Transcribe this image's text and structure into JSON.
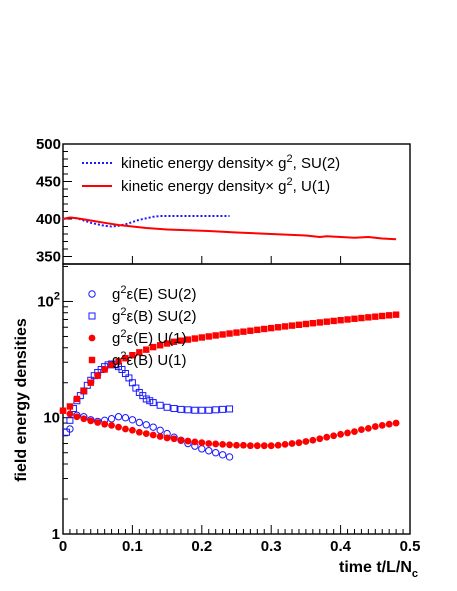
{
  "chart_data": [
    {
      "type": "line",
      "panel": "top",
      "xlim": [
        0,
        0.5
      ],
      "ylim": [
        340,
        500
      ],
      "y_ticks": [
        350,
        400,
        450,
        500
      ],
      "legend_position": "top",
      "legend": [
        {
          "prefix": "kinetic energy density",
          "times": "×",
          "factor": "g",
          "exp": "2",
          "suffix": ", SU(2)",
          "style": "dotted",
          "color": "#1a1aff"
        },
        {
          "prefix": "kinetic energy density",
          "times": "×",
          "factor": "g",
          "exp": "2",
          "suffix": ", U(1)",
          "style": "solid",
          "color": "#ff0000"
        }
      ],
      "series": [
        {
          "color": "#1a1aff",
          "style": "dotted",
          "x": [
            0,
            0.01,
            0.02,
            0.03,
            0.04,
            0.05,
            0.06,
            0.07,
            0.08,
            0.09,
            0.1,
            0.11,
            0.12,
            0.13,
            0.14,
            0.15,
            0.16,
            0.18,
            0.2,
            0.22,
            0.24
          ],
          "y": [
            400,
            402,
            401,
            398,
            395,
            393,
            391,
            390,
            391,
            393,
            396,
            399,
            401,
            403,
            404,
            404,
            404,
            404,
            404,
            404,
            404
          ]
        },
        {
          "color": "#ff0000",
          "style": "solid",
          "x": [
            0,
            0.01,
            0.02,
            0.04,
            0.06,
            0.08,
            0.1,
            0.12,
            0.15,
            0.18,
            0.21,
            0.25,
            0.3,
            0.35,
            0.37,
            0.38,
            0.4,
            0.42,
            0.44,
            0.45,
            0.46,
            0.48
          ],
          "y": [
            400,
            402,
            401,
            398,
            395,
            392,
            390,
            388,
            386,
            385,
            384,
            382,
            380,
            378,
            376,
            377,
            376,
            375,
            376,
            375,
            374,
            373
          ]
        }
      ]
    },
    {
      "type": "scatter",
      "panel": "bottom",
      "log_y": true,
      "xlim": [
        0,
        0.5
      ],
      "ylim": [
        1,
        210
      ],
      "x_ticks": [
        0,
        0.1,
        0.2,
        0.3,
        0.4,
        0.5
      ],
      "x_tick_labels": [
        "0",
        "0.1",
        "0.2",
        "0.3",
        "0.4",
        "0.5"
      ],
      "y_ticks": [
        1,
        10,
        100
      ],
      "y_tick_labels": [
        {
          "base": "1",
          "exp": ""
        },
        {
          "base": "10",
          "exp": ""
        },
        {
          "base": "10",
          "exp": "2"
        }
      ],
      "xlabel": {
        "main": "time t/L/N",
        "sub": "c"
      },
      "ylabel": "field energy densities",
      "legend_position": "top-left",
      "legend": [
        {
          "pre": "g",
          "exp": "2",
          "mid": "ε(E) SU(2)",
          "marker": "open-circle",
          "color": "#1a1aff"
        },
        {
          "pre": "g",
          "exp": "2",
          "mid": "ε(B) SU(2)",
          "marker": "open-square",
          "color": "#1a1aff"
        },
        {
          "pre": "g",
          "exp": "2",
          "mid": "ε(E) U(1)",
          "marker": "filled-circle",
          "color": "#ff0000"
        },
        {
          "pre": "g",
          "exp": "2",
          "mid": "ε(B) U(1)",
          "marker": "filled-square",
          "color": "#ff0000"
        }
      ],
      "series": [
        {
          "marker": "open-circle",
          "color": "#1a1aff",
          "x": [
            0.01,
            0.02,
            0.03,
            0.04,
            0.05,
            0.06,
            0.07,
            0.08,
            0.09,
            0.1,
            0.11,
            0.12,
            0.13,
            0.14,
            0.15,
            0.16,
            0.17,
            0.18,
            0.19,
            0.2,
            0.21,
            0.22,
            0.23,
            0.24
          ],
          "y": [
            8.0,
            10.5,
            10.2,
            9.6,
            9.3,
            9.5,
            9.8,
            10.2,
            10.0,
            9.6,
            9.1,
            8.7,
            8.3,
            7.8,
            7.3,
            6.8,
            6.4,
            6.0,
            5.7,
            5.4,
            5.2,
            5.0,
            4.8,
            4.6
          ]
        },
        {
          "marker": "open-square",
          "color": "#1a1aff",
          "x": [
            0.005,
            0.01,
            0.015,
            0.02,
            0.025,
            0.03,
            0.035,
            0.04,
            0.045,
            0.05,
            0.055,
            0.06,
            0.065,
            0.07,
            0.075,
            0.08,
            0.085,
            0.09,
            0.095,
            0.1,
            0.105,
            0.11,
            0.115,
            0.12,
            0.125,
            0.13,
            0.14,
            0.15,
            0.16,
            0.17,
            0.18,
            0.19,
            0.2,
            0.21,
            0.22,
            0.23,
            0.24
          ],
          "y": [
            7.5,
            9.5,
            12.0,
            14.0,
            15.5,
            17.0,
            19.0,
            21.0,
            23.0,
            24.5,
            26.0,
            27.5,
            28.5,
            29.0,
            28.5,
            27.5,
            26.0,
            24.0,
            22.0,
            20.0,
            18.0,
            16.5,
            15.5,
            14.5,
            14.0,
            13.5,
            12.8,
            12.3,
            12.0,
            11.8,
            11.7,
            11.6,
            11.6,
            11.6,
            11.7,
            11.8,
            11.9
          ]
        },
        {
          "marker": "filled-circle",
          "color": "#ff0000",
          "x": [
            0.0,
            0.01,
            0.02,
            0.03,
            0.04,
            0.05,
            0.06,
            0.07,
            0.08,
            0.09,
            0.1,
            0.11,
            0.12,
            0.13,
            0.14,
            0.15,
            0.16,
            0.17,
            0.18,
            0.19,
            0.2,
            0.21,
            0.22,
            0.23,
            0.24,
            0.25,
            0.26,
            0.27,
            0.28,
            0.29,
            0.3,
            0.31,
            0.32,
            0.33,
            0.34,
            0.35,
            0.36,
            0.37,
            0.38,
            0.39,
            0.4,
            0.41,
            0.42,
            0.43,
            0.44,
            0.45,
            0.46,
            0.47,
            0.48
          ],
          "y": [
            11.5,
            10.8,
            10.2,
            9.8,
            9.4,
            9.1,
            8.8,
            8.6,
            8.3,
            8.0,
            7.8,
            7.5,
            7.3,
            7.1,
            6.9,
            6.7,
            6.6,
            6.4,
            6.3,
            6.2,
            6.1,
            6.0,
            5.95,
            5.9,
            5.85,
            5.8,
            5.8,
            5.75,
            5.75,
            5.75,
            5.75,
            5.8,
            5.9,
            6.0,
            6.1,
            6.25,
            6.4,
            6.6,
            6.8,
            7.0,
            7.2,
            7.4,
            7.6,
            7.9,
            8.1,
            8.4,
            8.6,
            8.8,
            9.0
          ]
        },
        {
          "marker": "filled-square",
          "color": "#ff0000",
          "x": [
            0.0,
            0.01,
            0.02,
            0.03,
            0.04,
            0.05,
            0.06,
            0.07,
            0.08,
            0.09,
            0.1,
            0.11,
            0.12,
            0.13,
            0.14,
            0.15,
            0.16,
            0.17,
            0.18,
            0.19,
            0.2,
            0.21,
            0.22,
            0.23,
            0.24,
            0.25,
            0.26,
            0.27,
            0.28,
            0.29,
            0.3,
            0.31,
            0.32,
            0.33,
            0.34,
            0.35,
            0.36,
            0.37,
            0.38,
            0.39,
            0.4,
            0.41,
            0.42,
            0.43,
            0.44,
            0.45,
            0.46,
            0.47,
            0.48
          ],
          "y": [
            11.5,
            12.5,
            14.5,
            17.0,
            20.0,
            23.0,
            26.0,
            28.5,
            30.5,
            32.5,
            34.5,
            36.5,
            38.5,
            40.5,
            42.0,
            43.5,
            45.0,
            46.0,
            47.0,
            48.0,
            49.0,
            50.0,
            51.0,
            52.0,
            53.0,
            54.0,
            55.0,
            56.0,
            57.0,
            58.0,
            59.0,
            60.0,
            61.0,
            62.0,
            63.0,
            64.0,
            65.0,
            66.0,
            67.0,
            68.0,
            69.0,
            70.0,
            71.0,
            72.0,
            73.0,
            74.0,
            75.0,
            76.0,
            77.0
          ]
        }
      ]
    }
  ]
}
